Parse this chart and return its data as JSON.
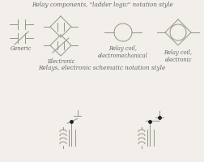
{
  "title1": "Relay components, \"ladder logic\" notation style",
  "title2": "Relays, electronic schematic notation style",
  "bg_color": "#f2efea",
  "line_color": "#999990",
  "text_color": "#666660",
  "label_generic": "Generic",
  "label_electronic": "Electronic",
  "label_coil_em": "Relay coil,\nelectromechanical",
  "label_coil_el": "Relay coil,\nelectronic",
  "title_fontsize": 5.2,
  "label_fontsize": 4.8
}
